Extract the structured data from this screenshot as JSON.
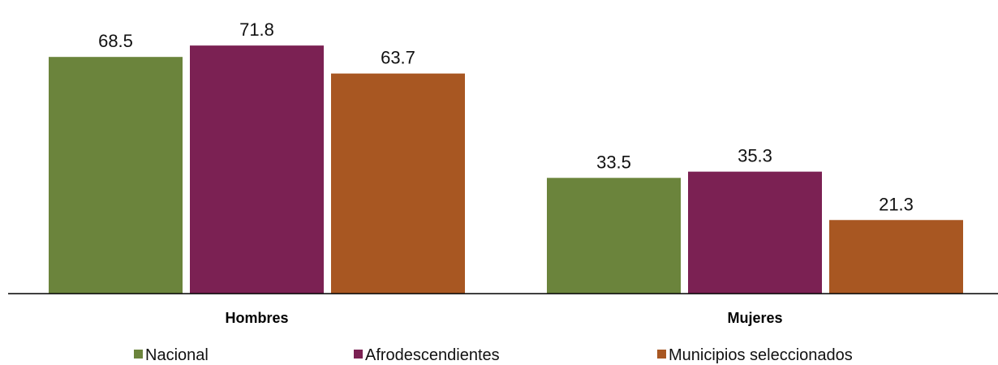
{
  "chart_data": {
    "type": "bar",
    "categories": [
      "Hombres",
      "Mujeres"
    ],
    "series": [
      {
        "name": "Nacional",
        "values": [
          68.5,
          33.5
        ],
        "color": "#6b843c"
      },
      {
        "name": "Afrodescendientes",
        "values": [
          71.8,
          35.3
        ],
        "color": "#7b2153"
      },
      {
        "name": "Municipios seleccionados",
        "values": [
          63.7,
          21.3
        ],
        "color": "#a85722"
      }
    ],
    "ylim": [
      0,
      80
    ],
    "grid": false,
    "legend_position": "bottom",
    "axis_color": "#000000"
  }
}
